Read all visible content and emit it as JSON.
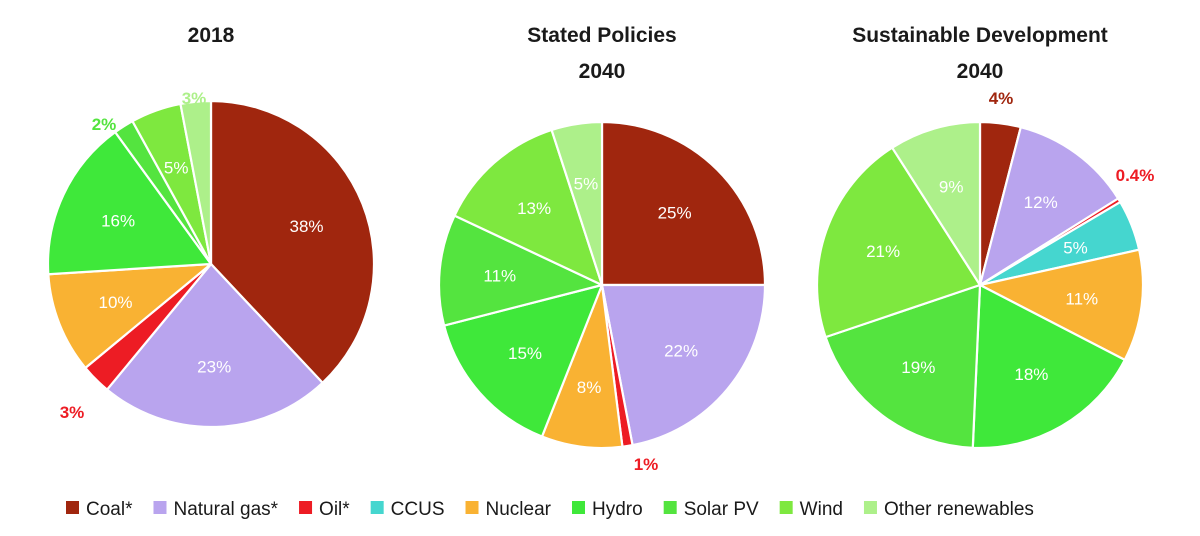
{
  "chart_data": [
    {
      "type": "pie",
      "title": [
        "2018"
      ],
      "slices": [
        {
          "label": "Coal*",
          "value": 38,
          "text": "38%",
          "color": "#a0260e",
          "label_mode": "inside"
        },
        {
          "label": "Natural gas*",
          "value": 23,
          "text": "23%",
          "color": "#b9a4ee",
          "label_mode": "inside"
        },
        {
          "label": "Oil*",
          "value": 3,
          "text": "3%",
          "color": "#ed1c24",
          "label_mode": "outside"
        },
        {
          "label": "CCUS",
          "value": 0,
          "text": "",
          "color": "#45d6cf",
          "label_mode": "none"
        },
        {
          "label": "Nuclear",
          "value": 10,
          "text": "10%",
          "color": "#f9b233",
          "label_mode": "inside"
        },
        {
          "label": "Hydro",
          "value": 16,
          "text": "16%",
          "color": "#3fe83a",
          "label_mode": "inside"
        },
        {
          "label": "Solar PV",
          "value": 2,
          "text": "2%",
          "color": "#54e43f",
          "label_mode": "outside"
        },
        {
          "label": "Wind",
          "value": 5,
          "text": "5%",
          "color": "#7ee83f",
          "label_mode": "inside"
        },
        {
          "label": "Other renewables",
          "value": 3,
          "text": "3%",
          "color": "#adf08a",
          "label_mode": "outside"
        }
      ]
    },
    {
      "type": "pie",
      "title": [
        "Stated Policies",
        "2040"
      ],
      "slices": [
        {
          "label": "Coal*",
          "value": 25,
          "text": "25%",
          "color": "#a0260e",
          "label_mode": "inside"
        },
        {
          "label": "Natural gas*",
          "value": 22,
          "text": "22%",
          "color": "#b9a4ee",
          "label_mode": "inside"
        },
        {
          "label": "Oil*",
          "value": 1,
          "text": "1%",
          "color": "#ed1c24",
          "label_mode": "outside"
        },
        {
          "label": "CCUS",
          "value": 0,
          "text": "",
          "color": "#45d6cf",
          "label_mode": "none"
        },
        {
          "label": "Nuclear",
          "value": 8,
          "text": "8%",
          "color": "#f9b233",
          "label_mode": "inside"
        },
        {
          "label": "Hydro",
          "value": 15,
          "text": "15%",
          "color": "#3fe83a",
          "label_mode": "inside"
        },
        {
          "label": "Solar PV",
          "value": 11,
          "text": "11%",
          "color": "#54e43f",
          "label_mode": "inside"
        },
        {
          "label": "Wind",
          "value": 13,
          "text": "13%",
          "color": "#7ee83f",
          "label_mode": "inside"
        },
        {
          "label": "Other renewables",
          "value": 5,
          "text": "5%",
          "color": "#adf08a",
          "label_mode": "inside"
        }
      ]
    },
    {
      "type": "pie",
      "title": [
        "Sustainable Development",
        "2040"
      ],
      "slices": [
        {
          "label": "Coal*",
          "value": 4,
          "text": "4%",
          "color": "#a0260e",
          "label_mode": "outside"
        },
        {
          "label": "Natural gas*",
          "value": 12,
          "text": "12%",
          "color": "#b9a4ee",
          "label_mode": "inside"
        },
        {
          "label": "Oil*",
          "value": 0.4,
          "text": "0.4%",
          "color": "#ed1c24",
          "label_mode": "outside"
        },
        {
          "label": "CCUS",
          "value": 5,
          "text": "5%",
          "color": "#45d6cf",
          "label_mode": "inside"
        },
        {
          "label": "Nuclear",
          "value": 11,
          "text": "11%",
          "color": "#f9b233",
          "label_mode": "inside"
        },
        {
          "label": "Hydro",
          "value": 18,
          "text": "18%",
          "color": "#3fe83a",
          "label_mode": "inside"
        },
        {
          "label": "Solar PV",
          "value": 19,
          "text": "19%",
          "color": "#54e43f",
          "label_mode": "inside"
        },
        {
          "label": "Wind",
          "value": 21,
          "text": "21%",
          "color": "#7ee83f",
          "label_mode": "inside"
        },
        {
          "label": "Other renewables",
          "value": 9,
          "text": "9%",
          "color": "#adf08a",
          "label_mode": "inside"
        }
      ]
    }
  ],
  "legend": {
    "placement": "bottom",
    "items": [
      {
        "label": "Coal*",
        "color": "#a0260e"
      },
      {
        "label": "Natural gas*",
        "color": "#b9a4ee"
      },
      {
        "label": "Oil*",
        "color": "#ed1c24"
      },
      {
        "label": "CCUS",
        "color": "#45d6cf"
      },
      {
        "label": "Nuclear",
        "color": "#f9b233"
      },
      {
        "label": "Hydro",
        "color": "#3fe83a"
      },
      {
        "label": "Solar PV",
        "color": "#54e43f"
      },
      {
        "label": "Wind",
        "color": "#7ee83f"
      },
      {
        "label": "Other renewables",
        "color": "#adf08a"
      }
    ]
  }
}
